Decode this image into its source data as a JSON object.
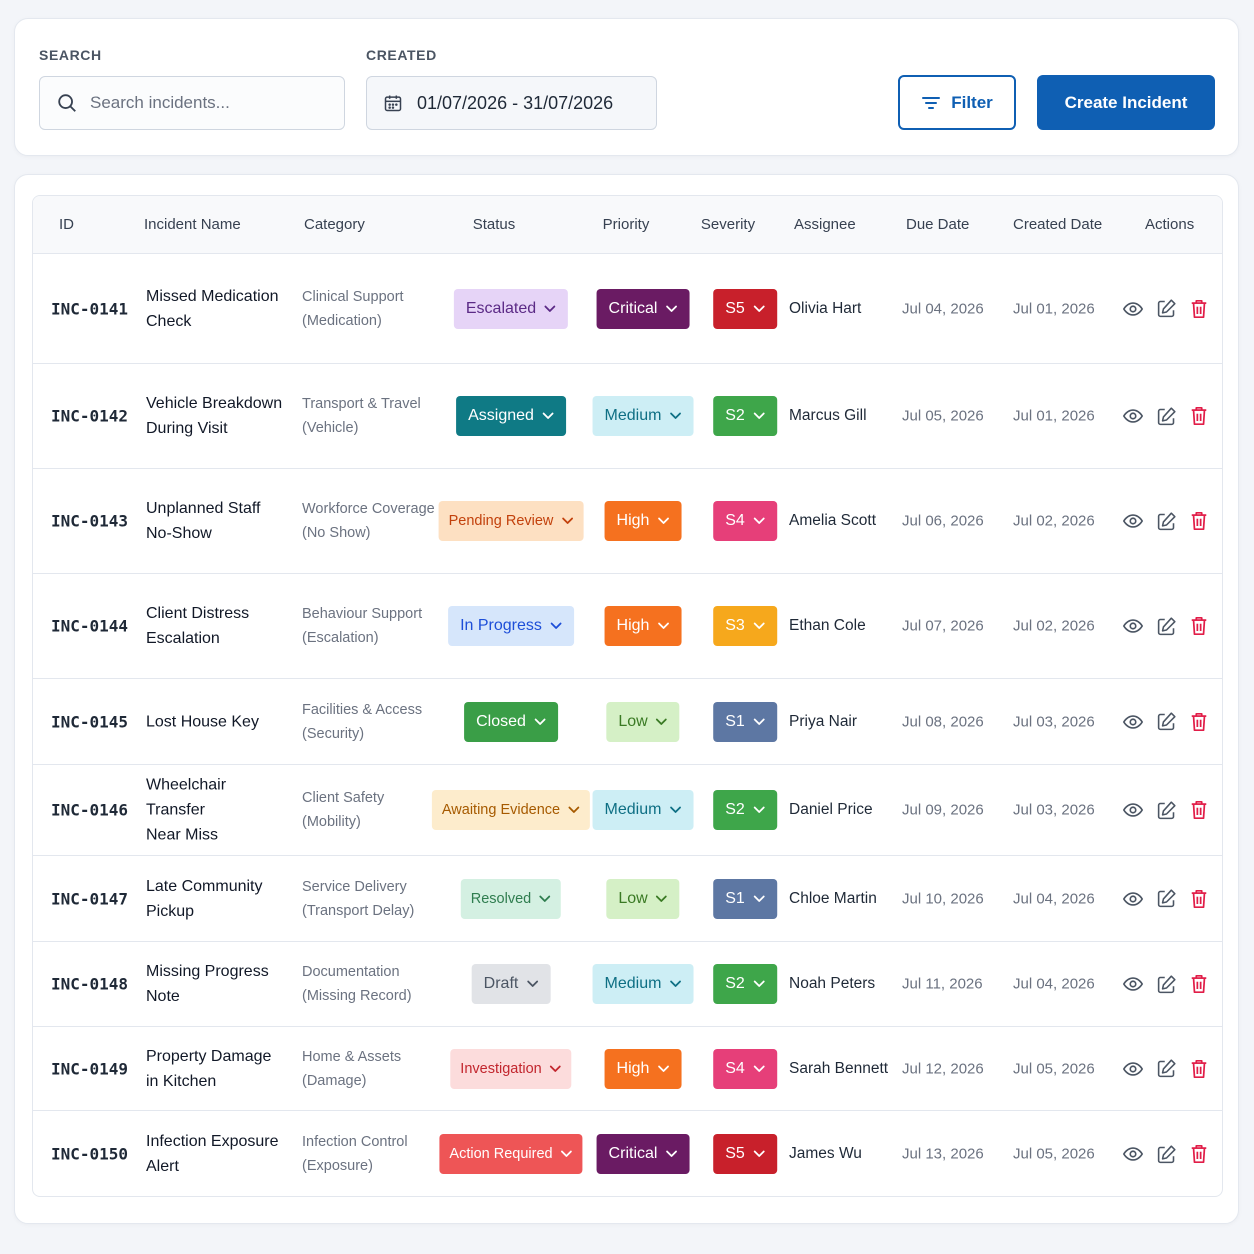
{
  "search": {
    "label": "SEARCH",
    "placeholder": "Search incidents..."
  },
  "created_filter": {
    "label": "CREATED",
    "value": "01/07/2026 - 31/07/2026"
  },
  "filter_button": "Filter",
  "create_button": "Create Incident",
  "columns": [
    "ID",
    "Incident Name",
    "Category",
    "Status",
    "Priority",
    "Severity",
    "Assignee",
    "Due Date",
    "Created Date",
    "Actions"
  ],
  "colors": {
    "primary": "#0f5fb3",
    "delete": "#e11d48",
    "icon": "#4b5563"
  },
  "rows": [
    {
      "id": "INC-0141",
      "name": [
        "Missed Medication",
        "Check"
      ],
      "category": [
        "Clinical Support",
        "(Medication)"
      ],
      "status": "Escalated",
      "priority": "Critical",
      "severity": "S5",
      "assignee": "Olivia Hart",
      "due": "Jul 04, 2026",
      "created": "Jul 01, 2026"
    },
    {
      "id": "INC-0142",
      "name": [
        "Vehicle Breakdown",
        "During Visit"
      ],
      "category": [
        "Transport & Travel",
        "(Vehicle)"
      ],
      "status": "Assigned",
      "priority": "Medium",
      "severity": "S2",
      "assignee": "Marcus Gill",
      "due": "Jul 05, 2026",
      "created": "Jul 01, 2026"
    },
    {
      "id": "INC-0143",
      "name": [
        "Unplanned Staff",
        "No-Show"
      ],
      "category": [
        "Workforce Coverage",
        "(No Show)"
      ],
      "status": "Pending Review",
      "priority": "High",
      "severity": "S4",
      "assignee": "Amelia Scott",
      "due": "Jul 06, 2026",
      "created": "Jul 02, 2026"
    },
    {
      "id": "INC-0144",
      "name": [
        "Client Distress",
        "Escalation"
      ],
      "category": [
        "Behaviour Support",
        "(Escalation)"
      ],
      "status": "In Progress",
      "priority": "High",
      "severity": "S3",
      "assignee": "Ethan Cole",
      "due": "Jul 07, 2026",
      "created": "Jul 02, 2026"
    },
    {
      "id": "INC-0145",
      "name": [
        "Lost House Key"
      ],
      "category": [
        "Facilities & Access",
        "(Security)"
      ],
      "status": "Closed",
      "priority": "Low",
      "severity": "S1",
      "assignee": "Priya Nair",
      "due": "Jul 08, 2026",
      "created": "Jul 03, 2026"
    },
    {
      "id": "INC-0146",
      "name": [
        "Wheelchair Transfer",
        "Near Miss"
      ],
      "category": [
        "Client Safety",
        "(Mobility)"
      ],
      "status": "Awaiting Evidence",
      "priority": "Medium",
      "severity": "S2",
      "assignee": "Daniel Price",
      "due": "Jul 09, 2026",
      "created": "Jul 03, 2026"
    },
    {
      "id": "INC-0147",
      "name": [
        "Late Community",
        "Pickup"
      ],
      "category": [
        "Service Delivery",
        "(Transport Delay)"
      ],
      "status": "Resolved",
      "priority": "Low",
      "severity": "S1",
      "assignee": "Chloe Martin",
      "due": "Jul 10, 2026",
      "created": "Jul 04, 2026"
    },
    {
      "id": "INC-0148",
      "name": [
        "Missing Progress",
        "Note"
      ],
      "category": [
        "Documentation",
        "(Missing Record)"
      ],
      "status": "Draft",
      "priority": "Medium",
      "severity": "S2",
      "assignee": "Noah Peters",
      "due": "Jul 11, 2026",
      "created": "Jul 04, 2026"
    },
    {
      "id": "INC-0149",
      "name": [
        "Property Damage",
        "in Kitchen"
      ],
      "category": [
        "Home & Assets",
        "(Damage)"
      ],
      "status": "Investigation",
      "priority": "High",
      "severity": "S4",
      "assignee": "Sarah Bennett",
      "due": "Jul 12, 2026",
      "created": "Jul 05, 2026"
    },
    {
      "id": "INC-0150",
      "name": [
        "Infection Exposure",
        "Alert"
      ],
      "category": [
        "Infection Control",
        "(Exposure)"
      ],
      "status": "Action Required",
      "priority": "Critical",
      "severity": "S5",
      "assignee": "James Wu",
      "due": "Jul 13, 2026",
      "created": "Jul 05, 2026"
    }
  ],
  "status_styles": {
    "Escalated": {
      "bg": "#e6d4f7",
      "fg": "#5b2a86"
    },
    "Assigned": {
      "bg": "#0f7a85",
      "fg": "#ffffff"
    },
    "Pending Review": {
      "bg": "#fde0c2",
      "fg": "#c2410c"
    },
    "In Progress": {
      "bg": "#d6e6fb",
      "fg": "#1d4ed8"
    },
    "Closed": {
      "bg": "#3a9e47",
      "fg": "#ffffff"
    },
    "Awaiting Evidence": {
      "bg": "#fdeccc",
      "fg": "#a65a00"
    },
    "Resolved": {
      "bg": "#d4f0e2",
      "fg": "#2f7d4f"
    },
    "Draft": {
      "bg": "#e1e3e7",
      "fg": "#4b5563"
    },
    "Investigation": {
      "bg": "#fcdcdc",
      "fg": "#c2262e"
    },
    "Action Required": {
      "bg": "#ee5556",
      "fg": "#ffffff"
    }
  },
  "priority_styles": {
    "Critical": {
      "bg": "#6a1b63",
      "fg": "#ffffff"
    },
    "Medium": {
      "bg": "#cdeef5",
      "fg": "#0e6f84"
    },
    "High": {
      "bg": "#f5711f",
      "fg": "#ffffff"
    },
    "Low": {
      "bg": "#d5f0c6",
      "fg": "#3a7a24"
    }
  },
  "severity_styles": {
    "S5": {
      "bg": "#c8202b",
      "fg": "#ffffff"
    },
    "S4": {
      "bg": "#e63f79",
      "fg": "#ffffff"
    },
    "S3": {
      "bg": "#f6a81c",
      "fg": "#ffffff"
    },
    "S2": {
      "bg": "#3ea64a",
      "fg": "#ffffff"
    },
    "S1": {
      "bg": "#5d77a3",
      "fg": "#ffffff"
    }
  }
}
